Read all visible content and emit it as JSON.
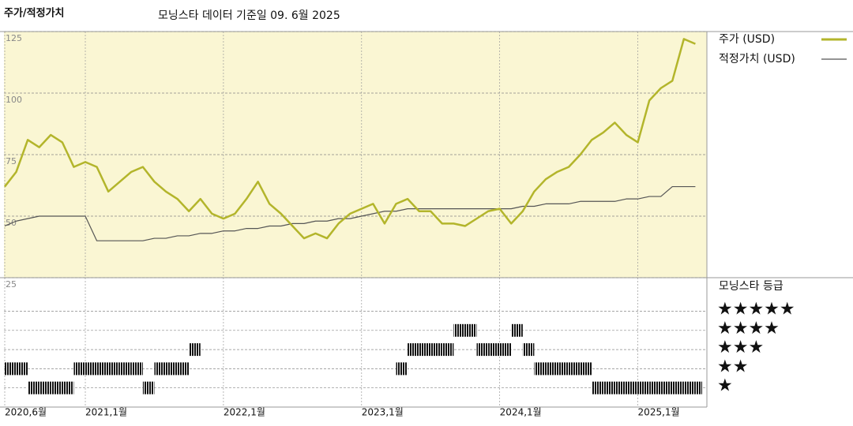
{
  "chart_data": [
    {
      "type": "line",
      "title": "주가/적정가치",
      "subtitle": "모닝스타 데이터 기준일 09. 6월 2025",
      "x": [
        "2020-06",
        "2020-07",
        "2020-08",
        "2020-09",
        "2020-10",
        "2020-11",
        "2020-12",
        "2021-01",
        "2021-02",
        "2021-03",
        "2021-04",
        "2021-05",
        "2021-06",
        "2021-07",
        "2021-08",
        "2021-09",
        "2021-10",
        "2021-11",
        "2021-12",
        "2022-01",
        "2022-02",
        "2022-03",
        "2022-04",
        "2022-05",
        "2022-06",
        "2022-07",
        "2022-08",
        "2022-09",
        "2022-10",
        "2022-11",
        "2022-12",
        "2023-01",
        "2023-02",
        "2023-03",
        "2023-04",
        "2023-05",
        "2023-06",
        "2023-07",
        "2023-08",
        "2023-09",
        "2023-10",
        "2023-11",
        "2023-12",
        "2024-01",
        "2024-02",
        "2024-03",
        "2024-04",
        "2024-05",
        "2024-06",
        "2024-07",
        "2024-08",
        "2024-09",
        "2024-10",
        "2024-11",
        "2024-12",
        "2025-01",
        "2025-02",
        "2025-03",
        "2025-04",
        "2025-05",
        "2025-06"
      ],
      "series": [
        {
          "name": "주가 (USD)",
          "color": "#b3b52b",
          "values": [
            62,
            68,
            81,
            78,
            83,
            80,
            70,
            72,
            70,
            60,
            64,
            68,
            70,
            64,
            60,
            57,
            52,
            57,
            51,
            49,
            51,
            57,
            64,
            55,
            51,
            46,
            41,
            43,
            41,
            47,
            51,
            53,
            55,
            47,
            55,
            57,
            52,
            52,
            47,
            47,
            46,
            49,
            52,
            53,
            47,
            52,
            60,
            65,
            68,
            70,
            75,
            81,
            84,
            88,
            83,
            80,
            97,
            102,
            105,
            122,
            120
          ]
        },
        {
          "name": "적정가치 (USD)",
          "color": "#555555",
          "values": [
            46,
            48,
            49,
            50,
            50,
            50,
            50,
            50,
            40,
            40,
            40,
            40,
            40,
            41,
            41,
            42,
            42,
            43,
            43,
            44,
            44,
            45,
            45,
            46,
            46,
            47,
            47,
            48,
            48,
            49,
            49,
            50,
            51,
            52,
            52,
            53,
            53,
            53,
            53,
            53,
            53,
            53,
            53,
            53,
            53,
            54,
            54,
            55,
            55,
            55,
            56,
            56,
            56,
            56,
            57,
            57,
            58,
            58,
            62,
            62,
            62
          ]
        }
      ],
      "xlim": [
        "2020-06",
        "2025-07"
      ],
      "xticks": [
        {
          "value": "2020-06",
          "label": "2020,6월"
        },
        {
          "value": "2021-01",
          "label": "2021,1월"
        },
        {
          "value": "2022-01",
          "label": "2022,1월"
        },
        {
          "value": "2023-01",
          "label": "2023,1월"
        },
        {
          "value": "2024-01",
          "label": "2024,1월"
        },
        {
          "value": "2025-01",
          "label": "2025,1월"
        }
      ],
      "ylim": [
        25,
        125
      ],
      "yticks": [
        25,
        50,
        75,
        100,
        125
      ],
      "grid": true,
      "background": "#faf6d3",
      "legend": "right"
    },
    {
      "type": "rating",
      "title": "모닝스타 등급",
      "values": [
        2,
        2,
        1,
        1,
        1,
        1,
        2,
        2,
        2,
        2,
        2,
        2,
        1,
        2,
        2,
        2,
        3,
        null,
        null,
        null,
        null,
        null,
        null,
        null,
        null,
        null,
        null,
        null,
        null,
        null,
        null,
        null,
        null,
        null,
        2,
        3,
        3,
        3,
        3,
        4,
        4,
        3,
        3,
        3,
        4,
        3,
        2,
        2,
        2,
        2,
        2,
        1,
        1,
        1,
        1,
        1,
        1,
        1,
        1,
        1,
        1
      ],
      "ylim": [
        0,
        6.75
      ],
      "yticks": [
        {
          "value": 5,
          "label": "★★★★★"
        },
        {
          "value": 4,
          "label": "★★★★"
        },
        {
          "value": 3,
          "label": "★★★"
        },
        {
          "value": 2,
          "label": "★★"
        },
        {
          "value": 1,
          "label": "★"
        }
      ],
      "color": "#111111",
      "legend": "right"
    }
  ]
}
